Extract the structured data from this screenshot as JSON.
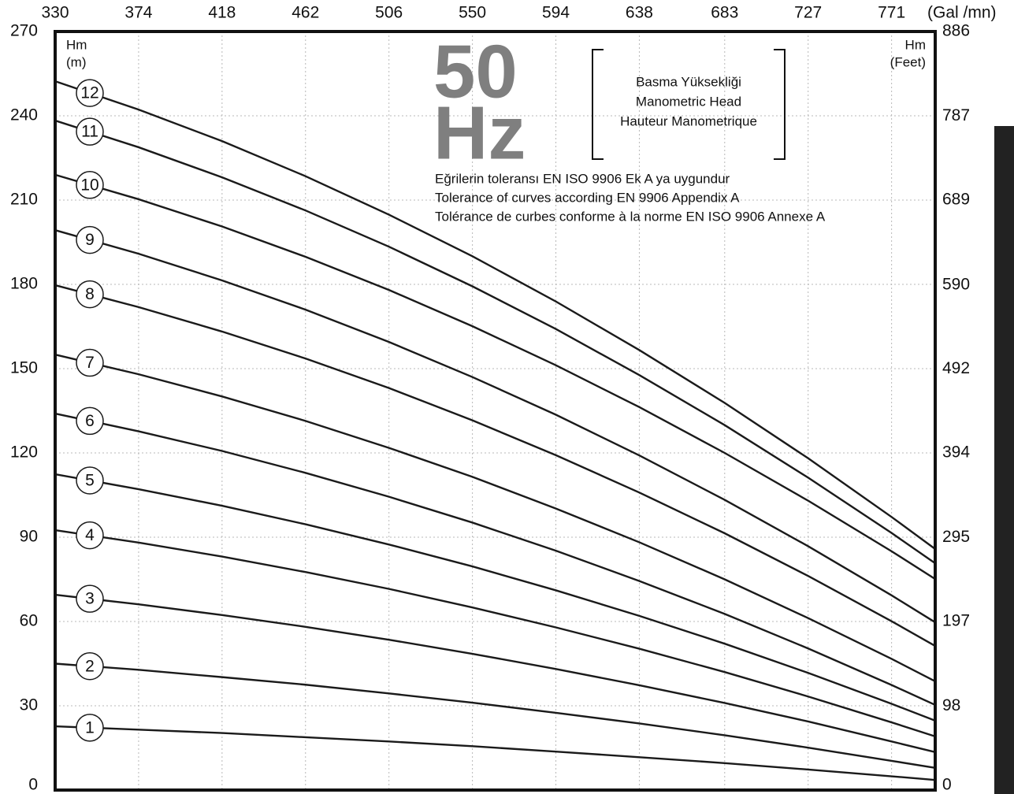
{
  "chart_data": {
    "type": "line",
    "x_label": "(Gal /mn)",
    "y_label": [
      "Hm",
      "(m)"
    ],
    "y2_label": [
      "Hm",
      "(Feet)"
    ],
    "frequency": [
      "50",
      "Hz"
    ],
    "head_box": [
      "Basma Yüksekliği",
      "Manometric Head",
      "Hauteur Manometrique"
    ],
    "notes": [
      "Eğrilerin toleransı EN ISO 9906 Ek A ya uygundur",
      "Tolerance of curves according EN 9906 Appendix A",
      "Tolérance de curbes conforme à la norme EN ISO 9906 Annexe A"
    ],
    "x": [
      330,
      374,
      418,
      462,
      506,
      550,
      594,
      638,
      683,
      727,
      771,
      794
    ],
    "xlim": [
      330,
      794
    ],
    "xticks": [
      330,
      374,
      418,
      462,
      506,
      550,
      594,
      638,
      683,
      727,
      771
    ],
    "ylim": [
      0,
      270
    ],
    "yticks": [
      0,
      30,
      60,
      90,
      120,
      150,
      180,
      210,
      240,
      270
    ],
    "y2lim": [
      0,
      886
    ],
    "y2ticks": [
      0,
      98,
      197,
      295,
      394,
      492,
      590,
      689,
      787,
      886
    ],
    "grid": true,
    "series": [
      {
        "name": "1",
        "color": "#1a1a1a",
        "values": [
          22.7,
          21.5,
          20.3,
          18.8,
          17.3,
          15.6,
          13.7,
          11.7,
          9.6,
          7.3,
          4.9,
          3.6
        ]
      },
      {
        "name": "2",
        "color": "#1a1a1a",
        "values": [
          45,
          42.8,
          40.2,
          37.5,
          34.4,
          31.1,
          27.5,
          23.7,
          19.5,
          15.1,
          10.4,
          7.9
        ]
      },
      {
        "name": "3",
        "color": "#1a1a1a",
        "values": [
          69.5,
          66.1,
          62.3,
          58.1,
          53.5,
          48.5,
          43.1,
          37.3,
          31.0,
          24.4,
          17.3,
          13.5
        ]
      },
      {
        "name": "4",
        "color": "#1a1a1a",
        "values": [
          92.5,
          88.1,
          83.1,
          77.6,
          71.6,
          65.0,
          57.9,
          50.3,
          42.0,
          33.3,
          24.1,
          19.1
        ]
      },
      {
        "name": "5",
        "color": "#1a1a1a",
        "values": [
          112.4,
          107.1,
          101.2,
          94.6,
          87.4,
          79.6,
          71.1,
          62.0,
          52.1,
          41.7,
          30.7,
          24.7
        ]
      },
      {
        "name": "6",
        "color": "#1a1a1a",
        "values": [
          134,
          127.7,
          120.7,
          112.9,
          104.4,
          95.2,
          85.2,
          74.4,
          62.7,
          50.4,
          37.4,
          30.3
        ]
      },
      {
        "name": "7",
        "color": "#1a1a1a",
        "values": [
          155,
          148.0,
          140.1,
          131.4,
          121.8,
          111.5,
          100.2,
          88.2,
          75.0,
          61.2,
          46.7,
          38.7
        ]
      },
      {
        "name": "8",
        "color": "#1a1a1a",
        "values": [
          179.7,
          171.9,
          163.2,
          153.6,
          143.1,
          131.6,
          119.2,
          105.9,
          91.4,
          76.2,
          60.1,
          51.3
        ]
      },
      {
        "name": "9",
        "color": "#1a1a1a",
        "values": [
          199.3,
          190.9,
          181.4,
          171.0,
          159.5,
          147.0,
          133.6,
          119.1,
          103.3,
          86.8,
          69.3,
          59.7
        ]
      },
      {
        "name": "10",
        "color": "#1a1a1a",
        "values": [
          219,
          210.3,
          200.6,
          189.8,
          178.0,
          165.1,
          151.2,
          136.3,
          120.0,
          103.0,
          85.0,
          75.1
        ]
      },
      {
        "name": "11",
        "color": "#1a1a1a",
        "values": [
          238.3,
          228.8,
          218.1,
          206.3,
          193.4,
          179.3,
          164.1,
          147.7,
          129.9,
          111.2,
          91.5,
          80.7
        ]
      },
      {
        "name": "12",
        "color": "#1a1a1a",
        "values": [
          252.3,
          242.2,
          231.0,
          218.5,
          204.8,
          190.0,
          173.9,
          156.6,
          137.8,
          118.1,
          97.2,
          85.8
        ]
      }
    ]
  }
}
